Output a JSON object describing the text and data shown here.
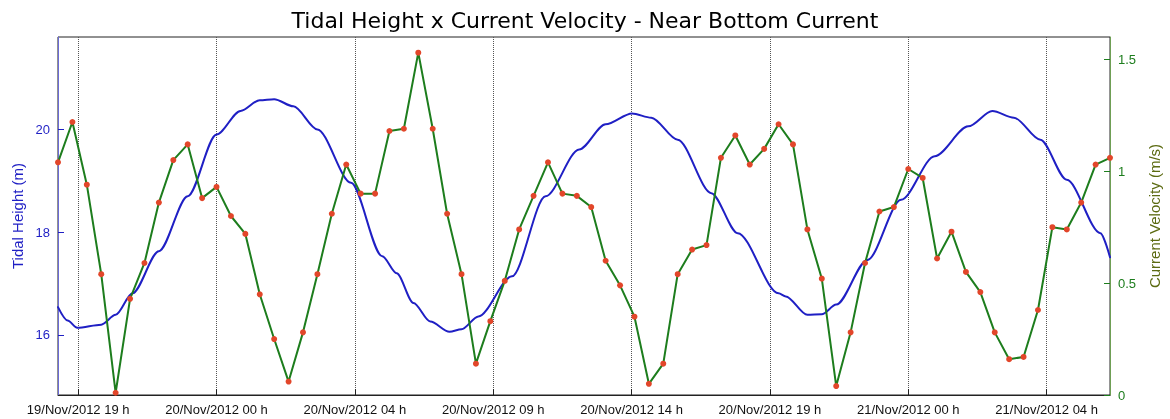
{
  "chart_data": {
    "type": "line",
    "title": "Tidal Height x Current Velocity - Near Bottom Current",
    "ylabel": "Tidal Height (m)",
    "y2label": "Current Velocity (m/s)",
    "xlim": [
      "2012-11-19T18:30",
      "2012-11-21T07:00"
    ],
    "xticks": [
      {
        "value": "2012-11-19T19:12",
        "label": "19/Nov/2012 19 h"
      },
      {
        "value": "2012-11-20T00:00",
        "label": "20/Nov/2012 00 h"
      },
      {
        "value": "2012-11-20T04:48",
        "label": "20/Nov/2012 04 h"
      },
      {
        "value": "2012-11-20T09:36",
        "label": "20/Nov/2012 09 h"
      },
      {
        "value": "2012-11-20T14:24",
        "label": "20/Nov/2012 14 h"
      },
      {
        "value": "2012-11-20T19:12",
        "label": "20/Nov/2012 19 h"
      },
      {
        "value": "2012-11-21T00:00",
        "label": "21/Nov/2012 00 h"
      },
      {
        "value": "2012-11-21T04:48",
        "label": "21/Nov/2012 04 h"
      }
    ],
    "ylim": [
      14.83,
      21.8
    ],
    "yticks": [
      16,
      18,
      20
    ],
    "y2lim": [
      0,
      1.6
    ],
    "y2ticks": [
      0,
      0.5,
      1,
      1.5
    ],
    "grid": "x",
    "line_style": "solid",
    "series": [
      {
        "color": "#1f1fc4",
        "marker": "none",
        "axis": "y",
        "x": [
          "2012-11-19T18:30",
          "2012-11-19T18:50",
          "2012-11-19T19:10",
          "2012-11-19T20:00",
          "2012-11-19T20:30",
          "2012-11-19T21:05",
          "2012-11-19T22:00",
          "2012-11-19T23:00",
          "2012-11-20T00:00",
          "2012-11-20T00:50",
          "2012-11-20T01:30",
          "2012-11-20T02:00",
          "2012-11-20T02:40",
          "2012-11-20T03:30",
          "2012-11-20T04:40",
          "2012-11-20T05:45",
          "2012-11-20T06:15",
          "2012-11-20T06:50",
          "2012-11-20T07:25",
          "2012-11-20T08:05",
          "2012-11-20T08:30",
          "2012-11-20T09:05",
          "2012-11-20T10:15",
          "2012-11-20T11:25",
          "2012-11-20T12:35",
          "2012-11-20T13:30",
          "2012-11-20T14:25",
          "2012-11-20T15:05",
          "2012-11-20T16:00",
          "2012-11-20T17:10",
          "2012-11-20T18:05",
          "2012-11-20T19:30",
          "2012-11-20T19:45",
          "2012-11-20T20:30",
          "2012-11-20T21:00",
          "2012-11-20T21:30",
          "2012-11-20T22:35",
          "2012-11-20T23:45",
          "2012-11-21T00:55",
          "2012-11-21T02:05",
          "2012-11-21T02:55",
          "2012-11-21T03:40",
          "2012-11-21T04:35",
          "2012-11-21T05:30",
          "2012-11-21T06:40",
          "2012-11-21T07:00"
        ],
        "values": [
          16.54,
          16.28,
          16.14,
          16.2,
          16.39,
          16.81,
          17.63,
          18.7,
          19.9,
          20.36,
          20.57,
          20.59,
          20.45,
          20.0,
          18.96,
          17.53,
          17.2,
          16.62,
          16.26,
          16.06,
          16.11,
          16.36,
          17.14,
          18.7,
          19.61,
          20.1,
          20.31,
          20.23,
          19.8,
          18.76,
          17.98,
          16.81,
          16.75,
          16.39,
          16.4,
          16.59,
          17.46,
          18.63,
          19.48,
          20.06,
          20.36,
          20.23,
          19.8,
          19.02,
          17.98,
          17.51
        ]
      },
      {
        "color": "#1d7d1d",
        "marker": "circle",
        "axis": "y2",
        "x": [
          "2012-11-19T18:30",
          "2012-11-19T19:00",
          "2012-11-19T19:30",
          "2012-11-19T20:00",
          "2012-11-19T20:30",
          "2012-11-19T21:00",
          "2012-11-19T21:30",
          "2012-11-19T22:00",
          "2012-11-19T22:30",
          "2012-11-19T23:00",
          "2012-11-19T23:30",
          "2012-11-20T00:00",
          "2012-11-20T00:30",
          "2012-11-20T01:00",
          "2012-11-20T01:30",
          "2012-11-20T02:00",
          "2012-11-20T02:30",
          "2012-11-20T03:00",
          "2012-11-20T03:30",
          "2012-11-20T04:00",
          "2012-11-20T04:30",
          "2012-11-20T05:00",
          "2012-11-20T05:30",
          "2012-11-20T06:00",
          "2012-11-20T06:30",
          "2012-11-20T07:00",
          "2012-11-20T07:30",
          "2012-11-20T08:00",
          "2012-11-20T08:30",
          "2012-11-20T09:00",
          "2012-11-20T09:30",
          "2012-11-20T10:00",
          "2012-11-20T10:30",
          "2012-11-20T11:00",
          "2012-11-20T11:30",
          "2012-11-20T12:00",
          "2012-11-20T12:30",
          "2012-11-20T13:00",
          "2012-11-20T13:30",
          "2012-11-20T14:00",
          "2012-11-20T14:30",
          "2012-11-20T15:00",
          "2012-11-20T15:30",
          "2012-11-20T16:00",
          "2012-11-20T16:30",
          "2012-11-20T17:00",
          "2012-11-20T17:30",
          "2012-11-20T18:00",
          "2012-11-20T18:30",
          "2012-11-20T19:00",
          "2012-11-20T19:30",
          "2012-11-20T20:00",
          "2012-11-20T20:30",
          "2012-11-20T21:00",
          "2012-11-20T21:30",
          "2012-11-20T22:00",
          "2012-11-20T22:30",
          "2012-11-20T23:00",
          "2012-11-20T23:30",
          "2012-11-21T00:00",
          "2012-11-21T00:30",
          "2012-11-21T01:00",
          "2012-11-21T01:30",
          "2012-11-21T02:00",
          "2012-11-21T02:30",
          "2012-11-21T03:00",
          "2012-11-21T03:30",
          "2012-11-21T04:00",
          "2012-11-21T04:30",
          "2012-11-21T05:00",
          "2012-11-21T05:30",
          "2012-11-21T06:00",
          "2012-11-21T06:30",
          "2012-11-21T07:00"
        ],
        "values": [
          1.04,
          1.22,
          0.94,
          0.54,
          0.01,
          0.43,
          0.59,
          0.86,
          1.05,
          1.12,
          0.88,
          0.93,
          0.8,
          0.72,
          0.45,
          0.25,
          0.06,
          0.28,
          0.54,
          0.81,
          1.03,
          0.9,
          0.9,
          1.18,
          1.19,
          1.53,
          1.19,
          0.81,
          0.54,
          0.14,
          0.33,
          0.51,
          0.74,
          0.89,
          1.04,
          0.9,
          0.89,
          0.84,
          0.6,
          0.49,
          0.35,
          0.05,
          0.14,
          0.54,
          0.65,
          0.67,
          1.06,
          1.16,
          1.03,
          1.1,
          1.21,
          1.12,
          0.74,
          0.52,
          0.04,
          0.28,
          0.59,
          0.82,
          0.84,
          1.01,
          0.97,
          0.61,
          0.73,
          0.55,
          0.46,
          0.28,
          0.16,
          0.17,
          0.38,
          0.75,
          0.74,
          0.86,
          1.03,
          1.06
        ]
      }
    ]
  }
}
